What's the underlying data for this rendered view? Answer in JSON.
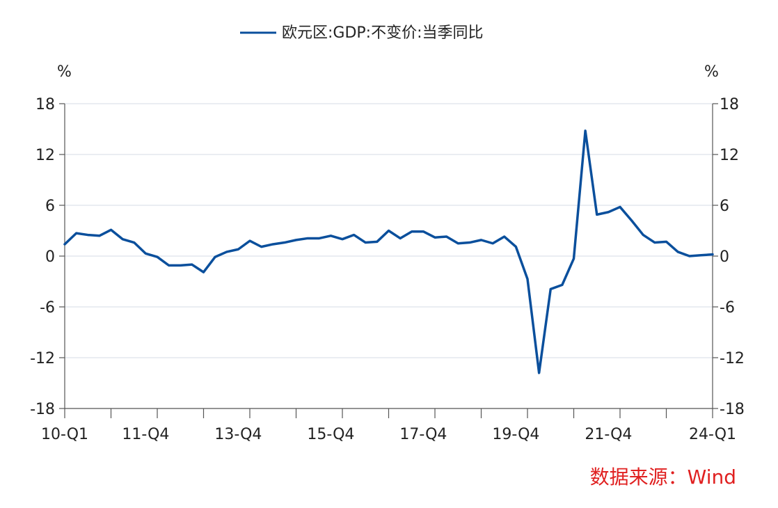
{
  "source_label": "数据来源：Wind",
  "chart_data": {
    "type": "line",
    "legend_position": "top-center",
    "grid": true,
    "y_unit_left": "%",
    "y_unit_right": "%",
    "ylim": [
      -18,
      18
    ],
    "y_ticks": [
      18,
      12,
      6,
      0,
      -6,
      -12,
      -18
    ],
    "x_tick_labels": [
      "10-Q1",
      "11-Q4",
      "13-Q4",
      "15-Q4",
      "17-Q4",
      "19-Q4",
      "21-Q4",
      "24-Q1"
    ],
    "x_tick_quarters": [
      "10-Q1",
      "11-Q4",
      "13-Q4",
      "15-Q4",
      "17-Q4",
      "19-Q4",
      "21-Q4",
      "24-Q1"
    ],
    "series": [
      {
        "name": "欧元区:GDP:不变价:当季同比",
        "color": "#0a4f9c",
        "points": [
          [
            "10-Q1",
            1.4
          ],
          [
            "10-Q2",
            2.7
          ],
          [
            "10-Q3",
            2.5
          ],
          [
            "10-Q4",
            2.4
          ],
          [
            "11-Q1",
            3.1
          ],
          [
            "11-Q2",
            2.0
          ],
          [
            "11-Q3",
            1.6
          ],
          [
            "11-Q4",
            0.3
          ],
          [
            "12-Q1",
            -0.1
          ],
          [
            "12-Q2",
            -1.1
          ],
          [
            "12-Q3",
            -1.1
          ],
          [
            "12-Q4",
            -1.0
          ],
          [
            "13-Q1",
            -1.9
          ],
          [
            "13-Q2",
            -0.1
          ],
          [
            "13-Q3",
            0.5
          ],
          [
            "13-Q4",
            0.8
          ],
          [
            "14-Q1",
            1.8
          ],
          [
            "14-Q2",
            1.1
          ],
          [
            "14-Q3",
            1.4
          ],
          [
            "14-Q4",
            1.6
          ],
          [
            "15-Q1",
            1.9
          ],
          [
            "15-Q2",
            2.1
          ],
          [
            "15-Q3",
            2.1
          ],
          [
            "15-Q4",
            2.4
          ],
          [
            "16-Q1",
            2.0
          ],
          [
            "16-Q2",
            2.5
          ],
          [
            "16-Q3",
            1.6
          ],
          [
            "16-Q4",
            1.7
          ],
          [
            "17-Q1",
            3.0
          ],
          [
            "17-Q2",
            2.1
          ],
          [
            "17-Q3",
            2.9
          ],
          [
            "17-Q4",
            2.9
          ],
          [
            "18-Q1",
            2.2
          ],
          [
            "18-Q2",
            2.3
          ],
          [
            "18-Q3",
            1.5
          ],
          [
            "18-Q4",
            1.6
          ],
          [
            "19-Q1",
            1.9
          ],
          [
            "19-Q2",
            1.5
          ],
          [
            "19-Q3",
            2.3
          ],
          [
            "19-Q4",
            1.1
          ],
          [
            "20-Q1",
            -2.7
          ],
          [
            "20-Q2",
            -13.8
          ],
          [
            "20-Q3",
            -3.9
          ],
          [
            "20-Q4",
            -3.4
          ],
          [
            "21-Q1",
            -0.3
          ],
          [
            "21-Q2",
            14.8
          ],
          [
            "21-Q3",
            4.9
          ],
          [
            "21-Q4",
            5.2
          ],
          [
            "22-Q1",
            5.8
          ],
          [
            "22-Q2",
            4.2
          ],
          [
            "22-Q3",
            2.5
          ],
          [
            "22-Q4",
            1.6
          ],
          [
            "23-Q1",
            1.7
          ],
          [
            "23-Q2",
            0.5
          ],
          [
            "23-Q3",
            0.0
          ],
          [
            "23-Q4",
            0.1
          ],
          [
            "24-Q1",
            0.2
          ]
        ]
      }
    ]
  }
}
